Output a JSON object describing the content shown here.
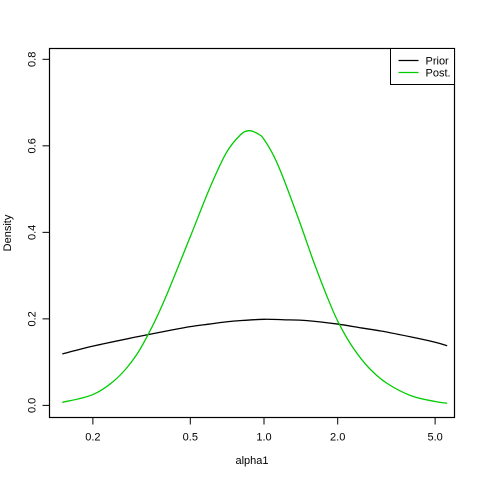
{
  "chart_data": {
    "type": "line",
    "xlabel": "alpha1",
    "ylabel": "Density",
    "x_scale": "log",
    "xlim": [
      0.133,
      6.0
    ],
    "ylim": [
      -0.028,
      0.825
    ],
    "x_ticks": [
      0.2,
      0.5,
      1.0,
      2.0,
      5.0
    ],
    "x_tick_labels": [
      "0.2",
      "0.5",
      "1.0",
      "2.0",
      "5.0"
    ],
    "y_ticks": [
      0.0,
      0.2,
      0.4,
      0.6,
      0.8
    ],
    "y_tick_labels": [
      "0.0",
      "0.2",
      "0.4",
      "0.6",
      "0.8"
    ],
    "grid": false,
    "legend_position": "top-right",
    "series": [
      {
        "name": "Prior",
        "color": "#000000",
        "x": [
          0.15,
          0.2,
          0.3,
          0.4,
          0.5,
          0.6,
          0.7,
          0.8,
          1.0,
          1.2,
          1.5,
          2.0,
          2.5,
          3.0,
          4.0,
          5.0,
          5.6
        ],
        "y": [
          0.119,
          0.137,
          0.158,
          0.172,
          0.182,
          0.188,
          0.193,
          0.196,
          0.199,
          0.198,
          0.196,
          0.188,
          0.179,
          0.172,
          0.158,
          0.146,
          0.138
        ]
      },
      {
        "name": "Post.",
        "color": "#00cc00",
        "x": [
          0.15,
          0.2,
          0.25,
          0.3,
          0.35,
          0.4,
          0.5,
          0.6,
          0.7,
          0.8,
          0.87,
          0.95,
          1.0,
          1.1,
          1.2,
          1.4,
          1.6,
          1.8,
          2.0,
          2.3,
          2.7,
          3.2,
          4.0,
          5.0,
          5.6
        ],
        "y": [
          0.007,
          0.025,
          0.062,
          0.115,
          0.183,
          0.255,
          0.39,
          0.502,
          0.583,
          0.625,
          0.635,
          0.627,
          0.615,
          0.575,
          0.525,
          0.423,
          0.33,
          0.255,
          0.195,
          0.135,
          0.085,
          0.05,
          0.022,
          0.009,
          0.005
        ]
      }
    ]
  }
}
